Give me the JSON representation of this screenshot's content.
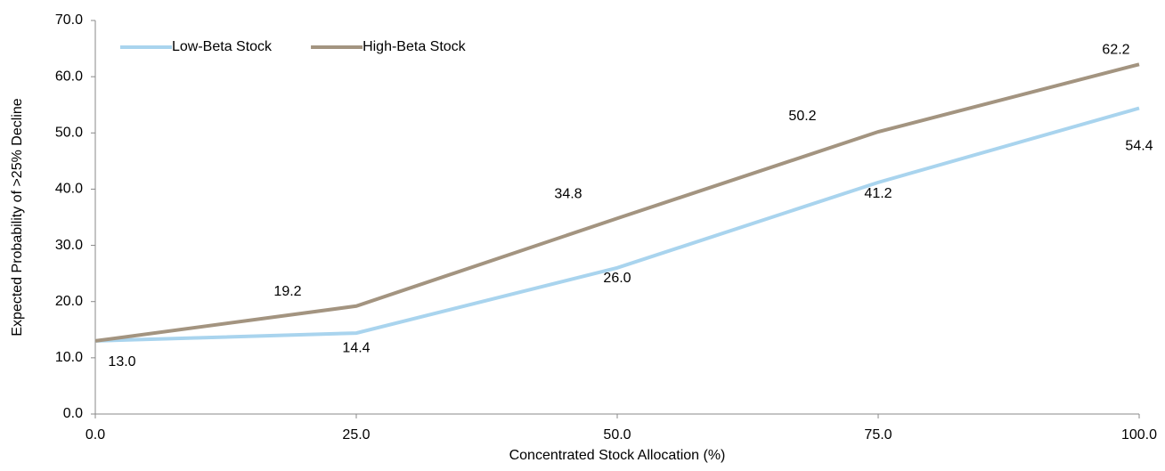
{
  "chart_data": {
    "type": "line",
    "x_label": "Concentrated Stock Allocation (%)",
    "y_label": "Expected Probability of >25% Decline",
    "x": [
      0,
      25,
      50,
      75,
      100
    ],
    "series": [
      {
        "name": "Low-Beta Stock",
        "color": "#a9d4ee",
        "values": [
          13.0,
          14.4,
          26.0,
          41.2,
          54.4
        ],
        "value_labels": [
          "13.0",
          "14.4",
          "26.0",
          "41.2",
          "54.4"
        ]
      },
      {
        "name": "High-Beta Stock",
        "color": "#a39480",
        "values": [
          13.0,
          19.2,
          34.8,
          50.2,
          62.2
        ],
        "value_labels": [
          null,
          "19.2",
          "34.8",
          "50.2",
          "62.2"
        ]
      }
    ],
    "xlim": [
      0,
      100
    ],
    "xticks": [
      {
        "value": 0,
        "label": "0.0"
      },
      {
        "value": 25,
        "label": "25.0"
      },
      {
        "value": 50,
        "label": "50.0"
      },
      {
        "value": 75,
        "label": "75.0"
      },
      {
        "value": 100,
        "label": "100.0"
      }
    ],
    "ylim": [
      0,
      70
    ],
    "yticks": [
      {
        "value": 0,
        "label": "0.0"
      },
      {
        "value": 10,
        "label": "10.0"
      },
      {
        "value": 20,
        "label": "20.0"
      },
      {
        "value": 30,
        "label": "30.0"
      },
      {
        "value": 40,
        "label": "40.0"
      },
      {
        "value": 50,
        "label": "50.0"
      },
      {
        "value": 60,
        "label": "60.0"
      },
      {
        "value": 70,
        "label": "70.0"
      }
    ],
    "grid": false,
    "legend": "top-left"
  }
}
